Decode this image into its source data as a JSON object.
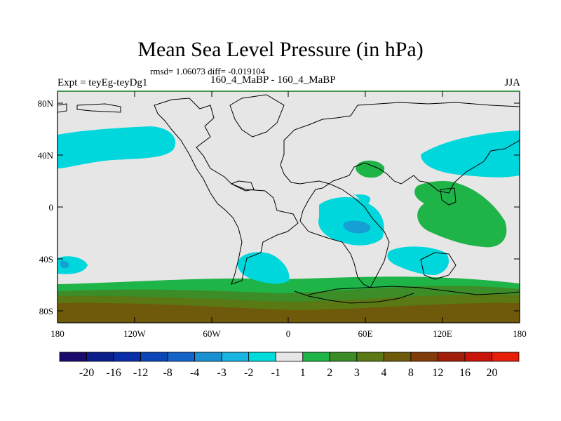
{
  "title": "Mean Sea Level Pressure (in hPa)",
  "stats_line": "rmsd= 1.06073 diff= -0.019104",
  "left_label": "Expt = teyEg-teyDg1",
  "center_label": "160_4_MaBP - 160_4_MaBP",
  "right_label": "JJA",
  "x_ticks": [
    "180",
    "120W",
    "60W",
    "0",
    "60E",
    "120E",
    "180"
  ],
  "y_ticks": [
    "80N",
    "40N",
    "0",
    "40S",
    "80S"
  ],
  "colorbar": {
    "labels": [
      "-20",
      "-16",
      "-12",
      "-8",
      "-4",
      "-3",
      "-2",
      "-1",
      "1",
      "2",
      "3",
      "4",
      "8",
      "12",
      "16",
      "20"
    ],
    "colors": [
      "#1a0a6e",
      "#0a1e8c",
      "#0a2ea8",
      "#0b46b8",
      "#1464c8",
      "#1a90d2",
      "#1ab4e0",
      "#00dcdc",
      "#e6e6e6",
      "#1eb448",
      "#3c8c28",
      "#5a7814",
      "#6e5a0a",
      "#823c0a",
      "#a01e0a",
      "#c8140a",
      "#e61e0a"
    ]
  },
  "field_colors": {
    "background": "#e6e6e6",
    "cyan": "#00d7dc",
    "blue": "#14a0d2",
    "green_light": "#1eb448",
    "green_dark": "#3c8c28",
    "olive": "#5a7814",
    "brown": "#6e5a0a"
  }
}
